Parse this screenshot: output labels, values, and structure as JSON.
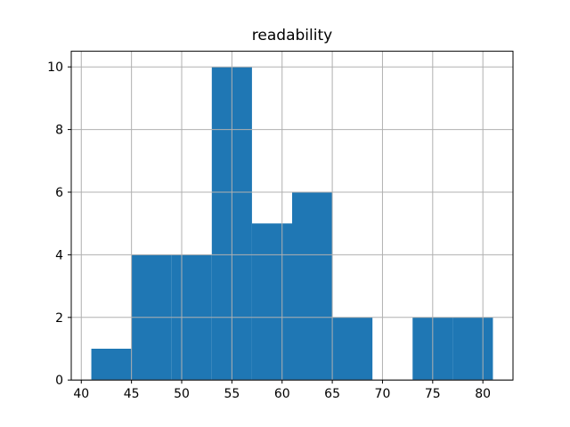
{
  "figure": {
    "background": "#ffffff"
  },
  "chart_data": {
    "type": "bar",
    "subtype": "histogram",
    "title": "readability",
    "xlabel": "",
    "ylabel": "",
    "bin_edges": [
      41,
      45,
      49,
      53,
      57,
      61,
      65,
      69,
      73,
      77,
      81
    ],
    "counts": [
      1,
      4,
      4,
      10,
      5,
      6,
      2,
      0,
      2,
      2
    ],
    "xlim": [
      39,
      83
    ],
    "ylim": [
      0,
      10.5
    ],
    "xticks": [
      40,
      45,
      50,
      55,
      60,
      65,
      70,
      75,
      80
    ],
    "yticks": [
      0,
      2,
      4,
      6,
      8,
      10
    ],
    "grid": true,
    "grid_over_bars": true,
    "legend": "none",
    "bar_color": "#1f77b4",
    "grid_color": "#b0b0b0",
    "spine_color": "#000000",
    "tick_label_color": "#000000"
  }
}
